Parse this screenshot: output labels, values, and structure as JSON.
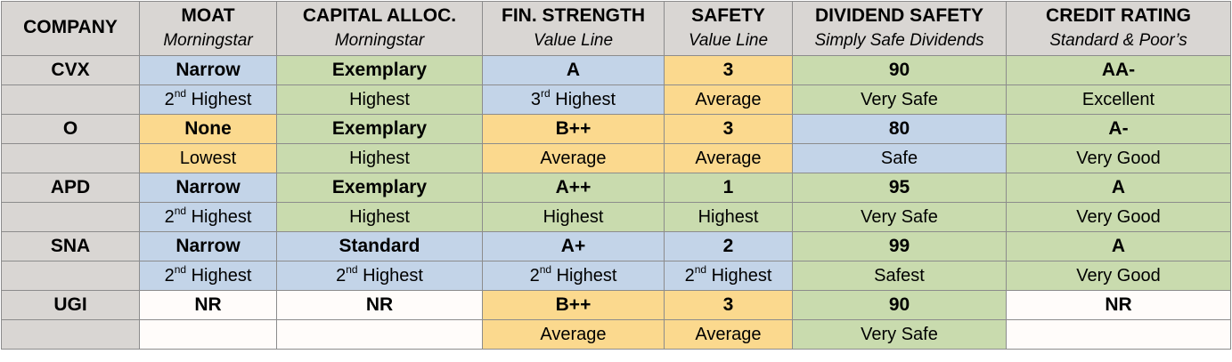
{
  "colors": {
    "header_bg": "#d9d6d3",
    "blue": "#c3d4e8",
    "green": "#c9dbae",
    "yellow": "#fbd98e",
    "white": "#fffcfa"
  },
  "headers": [
    {
      "title": "COMPANY",
      "source": ""
    },
    {
      "title": "MOAT",
      "source": "Morningstar"
    },
    {
      "title": "CAPITAL ALLOC.",
      "source": "Morningstar"
    },
    {
      "title": "FIN. STRENGTH",
      "source": "Value Line"
    },
    {
      "title": "SAFETY",
      "source": "Value Line"
    },
    {
      "title": "DIVIDEND SAFETY",
      "source": "Simply Safe Dividends"
    },
    {
      "title": "CREDIT RATING",
      "source": "Standard & Poor’s"
    }
  ],
  "rows": [
    {
      "company": "CVX",
      "cells": [
        {
          "value": "Narrow",
          "desc": "Highest",
          "ordinal": "2",
          "ord_suffix": "nd",
          "color": "blue"
        },
        {
          "value": "Exemplary",
          "desc": "Highest",
          "ordinal": "",
          "ord_suffix": "",
          "color": "green"
        },
        {
          "value": "A",
          "desc": "Highest",
          "ordinal": "3",
          "ord_suffix": "rd",
          "color": "blue"
        },
        {
          "value": "3",
          "desc": "Average",
          "ordinal": "",
          "ord_suffix": "",
          "color": "yellow"
        },
        {
          "value": "90",
          "desc": "Very Safe",
          "ordinal": "",
          "ord_suffix": "",
          "color": "green"
        },
        {
          "value": "AA-",
          "desc": "Excellent",
          "ordinal": "",
          "ord_suffix": "",
          "color": "green"
        }
      ]
    },
    {
      "company": "O",
      "cells": [
        {
          "value": "None",
          "desc": "Lowest",
          "ordinal": "",
          "ord_suffix": "",
          "color": "yellow"
        },
        {
          "value": "Exemplary",
          "desc": "Highest",
          "ordinal": "",
          "ord_suffix": "",
          "color": "green"
        },
        {
          "value": "B++",
          "desc": "Average",
          "ordinal": "",
          "ord_suffix": "",
          "color": "yellow"
        },
        {
          "value": "3",
          "desc": "Average",
          "ordinal": "",
          "ord_suffix": "",
          "color": "yellow"
        },
        {
          "value": "80",
          "desc": "Safe",
          "ordinal": "",
          "ord_suffix": "",
          "color": "blue"
        },
        {
          "value": "A-",
          "desc": "Very Good",
          "ordinal": "",
          "ord_suffix": "",
          "color": "green"
        }
      ]
    },
    {
      "company": "APD",
      "cells": [
        {
          "value": "Narrow",
          "desc": "Highest",
          "ordinal": "2",
          "ord_suffix": "nd",
          "color": "blue"
        },
        {
          "value": "Exemplary",
          "desc": "Highest",
          "ordinal": "",
          "ord_suffix": "",
          "color": "green"
        },
        {
          "value": "A++",
          "desc": "Highest",
          "ordinal": "",
          "ord_suffix": "",
          "color": "green"
        },
        {
          "value": "1",
          "desc": "Highest",
          "ordinal": "",
          "ord_suffix": "",
          "color": "green"
        },
        {
          "value": "95",
          "desc": "Very Safe",
          "ordinal": "",
          "ord_suffix": "",
          "color": "green"
        },
        {
          "value": "A",
          "desc": "Very Good",
          "ordinal": "",
          "ord_suffix": "",
          "color": "green"
        }
      ]
    },
    {
      "company": "SNA",
      "cells": [
        {
          "value": "Narrow",
          "desc": "Highest",
          "ordinal": "2",
          "ord_suffix": "nd",
          "color": "blue"
        },
        {
          "value": "Standard",
          "desc": "Highest",
          "ordinal": "2",
          "ord_suffix": "nd",
          "color": "blue"
        },
        {
          "value": "A+",
          "desc": "Highest",
          "ordinal": "2",
          "ord_suffix": "nd",
          "color": "blue"
        },
        {
          "value": "2",
          "desc": "Highest",
          "ordinal": "2",
          "ord_suffix": "nd",
          "color": "blue"
        },
        {
          "value": "99",
          "desc": "Safest",
          "ordinal": "",
          "ord_suffix": "",
          "color": "green"
        },
        {
          "value": "A",
          "desc": "Very Good",
          "ordinal": "",
          "ord_suffix": "",
          "color": "green"
        }
      ]
    },
    {
      "company": "UGI",
      "cells": [
        {
          "value": "NR",
          "desc": "",
          "ordinal": "",
          "ord_suffix": "",
          "color": "white"
        },
        {
          "value": "NR",
          "desc": "",
          "ordinal": "",
          "ord_suffix": "",
          "color": "white"
        },
        {
          "value": "B++",
          "desc": "Average",
          "ordinal": "",
          "ord_suffix": "",
          "color": "yellow"
        },
        {
          "value": "3",
          "desc": "Average",
          "ordinal": "",
          "ord_suffix": "",
          "color": "yellow"
        },
        {
          "value": "90",
          "desc": "Very Safe",
          "ordinal": "",
          "ord_suffix": "",
          "color": "green"
        },
        {
          "value": "NR",
          "desc": "",
          "ordinal": "",
          "ord_suffix": "",
          "color": "white"
        }
      ]
    }
  ]
}
